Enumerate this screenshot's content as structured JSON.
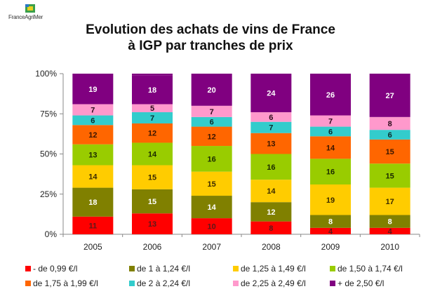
{
  "logo": {
    "text": "FranceAgriMer"
  },
  "chart_data": {
    "type": "bar",
    "stacked": true,
    "title": "Evolution des achats de vins de France à IGP par tranches de prix",
    "title_lines": [
      "Evolution des achats de vins de France",
      "à IGP par tranches de prix"
    ],
    "xlabel": "",
    "ylabel": "",
    "ylim": [
      0,
      100
    ],
    "yticks": [
      "0%",
      "25%",
      "50%",
      "75%",
      "100%"
    ],
    "ytick_values": [
      0,
      25,
      50,
      75,
      100
    ],
    "grid": false,
    "legend_position": "bottom",
    "categories": [
      "2005",
      "2006",
      "2007",
      "2008",
      "2009",
      "2010"
    ],
    "series": [
      {
        "name": "- de 0,99 €/l",
        "color": "#ff0000",
        "label_color": "#5a1a1a",
        "values": [
          11,
          13,
          10,
          8,
          4,
          4
        ]
      },
      {
        "name": "de 1 à 1,24 €/l",
        "color": "#808000",
        "label_color": "#ffffff",
        "values": [
          18,
          15,
          14,
          12,
          8,
          8
        ]
      },
      {
        "name": "de 1,25 à 1,49 €/l",
        "color": "#ffcc00",
        "label_color": "#3a2a00",
        "values": [
          14,
          15,
          15,
          14,
          19,
          17
        ]
      },
      {
        "name": "de 1,50 à 1,74 €/l",
        "color": "#99cc00",
        "label_color": "#1a2a00",
        "values": [
          13,
          14,
          16,
          16,
          16,
          15
        ]
      },
      {
        "name": "de 1,75 à 1,99 €/l",
        "color": "#ff6600",
        "label_color": "#3a1500",
        "values": [
          12,
          12,
          12,
          13,
          14,
          15
        ]
      },
      {
        "name": "de 2 à 2,24 €/l",
        "color": "#33cccc",
        "label_color": "#0a2a2a",
        "values": [
          6,
          7,
          6,
          7,
          6,
          6
        ]
      },
      {
        "name": "de 2,25 à 2,49 €/l",
        "color": "#ff99cc",
        "label_color": "#2a0a1a",
        "values": [
          7,
          5,
          7,
          6,
          7,
          8
        ]
      },
      {
        "name": "+ de 2,50 €/l",
        "color": "#800080",
        "label_color": "#ffffff",
        "values": [
          19,
          18,
          20,
          24,
          26,
          27
        ]
      }
    ]
  }
}
